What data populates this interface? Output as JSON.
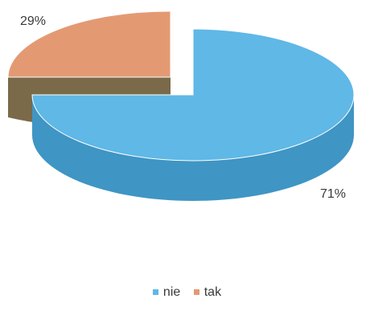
{
  "chart_data": {
    "type": "pie",
    "style": "3d-exploded",
    "title": "",
    "slices": [
      {
        "label": "nie",
        "value": 71,
        "display": "71%",
        "color": "#5fb8e6",
        "side_color": "#3f95c4"
      },
      {
        "label": "tak",
        "value": 29,
        "display": "29%",
        "color": "#e39a73",
        "side_color": "#7a6a4a"
      }
    ],
    "legend": {
      "position": "bottom",
      "entries": [
        "nie",
        "tak"
      ]
    }
  }
}
